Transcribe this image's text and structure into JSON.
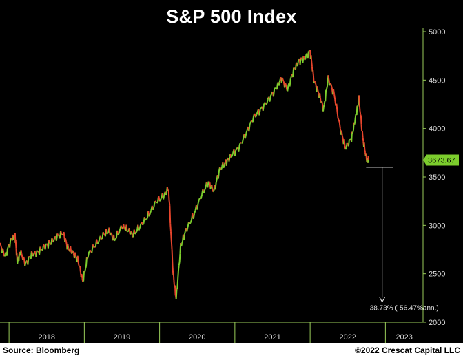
{
  "chart_data": {
    "type": "line",
    "title": "S&P 500 Index",
    "xlabel": "",
    "ylabel": "",
    "x_ticks": [
      "2018",
      "2019",
      "2020",
      "2021",
      "2022",
      "2023"
    ],
    "y_ticks": [
      2000,
      2500,
      3000,
      3500,
      4000,
      4500,
      5000
    ],
    "ylim": [
      2000,
      5000
    ],
    "xlim": [
      2017.88,
      2023.5
    ],
    "grid": false,
    "legend": "none",
    "series": [
      {
        "x": [
          2017.88,
          2017.95,
          2018.03,
          2018.08,
          2018.11,
          2018.15,
          2018.22,
          2018.3,
          2018.38,
          2018.47,
          2018.55,
          2018.63,
          2018.72,
          2018.78,
          2018.85,
          2018.92,
          2018.98,
          2019.05,
          2019.15,
          2019.25,
          2019.33,
          2019.4,
          2019.5,
          2019.58,
          2019.65,
          2019.75,
          2019.85,
          2019.95,
          2020.05,
          2020.12,
          2020.18,
          2020.22,
          2020.28,
          2020.35,
          2020.45,
          2020.55,
          2020.65,
          2020.72,
          2020.8,
          2020.88,
          2020.95,
          2021.05,
          2021.15,
          2021.25,
          2021.35,
          2021.45,
          2021.55,
          2021.62,
          2021.7,
          2021.78,
          2021.85,
          2021.92,
          2022.0,
          2022.05,
          2022.12,
          2022.18,
          2022.24,
          2022.32,
          2022.4,
          2022.47,
          2022.55,
          2022.6,
          2022.65,
          2022.7,
          2022.75,
          2022.78
        ],
        "values": [
          2800,
          2680,
          2860,
          2900,
          2620,
          2730,
          2600,
          2700,
          2720,
          2780,
          2820,
          2880,
          2920,
          2770,
          2720,
          2630,
          2420,
          2700,
          2800,
          2900,
          2940,
          2850,
          2990,
          2950,
          2900,
          3000,
          3100,
          3240,
          3300,
          3380,
          2500,
          2240,
          2780,
          2950,
          3100,
          3300,
          3450,
          3350,
          3580,
          3650,
          3720,
          3800,
          3950,
          4120,
          4200,
          4300,
          4420,
          4520,
          4400,
          4600,
          4700,
          4720,
          4800,
          4500,
          4350,
          4200,
          4520,
          4350,
          4000,
          3800,
          3900,
          4100,
          4300,
          3900,
          3680,
          3674
        ]
      }
    ],
    "last_value_label": "3673.67",
    "annotation": "-38.73% (-56.47%ann.)",
    "annotation_target_low": 2210,
    "annotation_start_value": 3600,
    "colors": {
      "up": "#7ccd2d",
      "down": "#e8452c",
      "axis": "#9acd5a",
      "badge": "#7ccd2d",
      "measure": "#ffffff"
    }
  },
  "footer": {
    "source": "Source: Bloomberg",
    "copyright": "©2022 Crescat Capital LLC"
  }
}
